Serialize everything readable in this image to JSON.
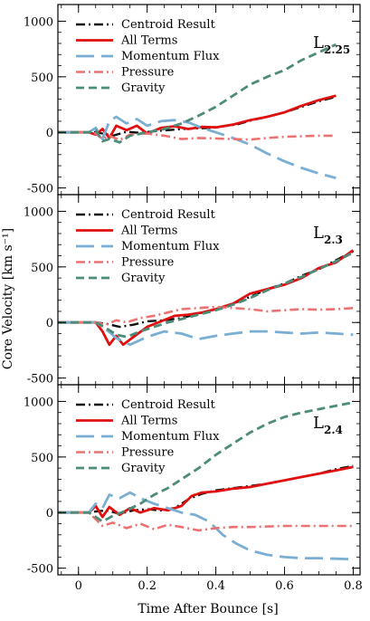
{
  "figure": {
    "ylabel": "Core Velocity [km s⁻¹]",
    "xlabel": "Time After Bounce [s]"
  },
  "colors": {
    "centroid": "#111111",
    "all_terms": "#e01010",
    "momentum_flux": "#7aaed2",
    "pressure": "#ec7272",
    "gravity": "#4d8c78"
  },
  "chart_data": [
    {
      "type": "line",
      "label": "L2.25",
      "label_main": "L",
      "label_sub": "2.25",
      "xlim": [
        -0.06,
        0.82
      ],
      "ylim": [
        -560,
        1150
      ],
      "xticks": [
        0,
        0.2,
        0.4,
        0.6,
        0.8
      ],
      "yticks": [
        -500,
        0,
        500,
        1000
      ],
      "grid": false,
      "legend": "top-left",
      "series": [
        {
          "name": "Centroid Result",
          "key": "centroid",
          "style": "dashdot",
          "x": [
            -0.06,
            0.03,
            0.05,
            0.07,
            0.1,
            0.14,
            0.18,
            0.22,
            0.26,
            0.3,
            0.34,
            0.38,
            0.42,
            0.46,
            0.5,
            0.55,
            0.6,
            0.65,
            0.7,
            0.75
          ],
          "y": [
            0,
            0,
            2,
            -10,
            -30,
            5,
            -5,
            10,
            20,
            30,
            35,
            40,
            55,
            70,
            105,
            140,
            180,
            230,
            280,
            320
          ]
        },
        {
          "name": "All Terms",
          "key": "all_terms",
          "style": "solid",
          "x": [
            -0.06,
            0.03,
            0.05,
            0.07,
            0.09,
            0.11,
            0.14,
            0.17,
            0.2,
            0.24,
            0.28,
            0.32,
            0.36,
            0.4,
            0.45,
            0.5,
            0.55,
            0.6,
            0.65,
            0.7,
            0.75
          ],
          "y": [
            0,
            0,
            -20,
            30,
            -50,
            60,
            20,
            60,
            -10,
            40,
            55,
            30,
            50,
            45,
            70,
            110,
            140,
            180,
            240,
            290,
            330
          ]
        },
        {
          "name": "Momentum Flux",
          "key": "momentum_flux",
          "style": "longdash",
          "x": [
            -0.06,
            0.03,
            0.05,
            0.07,
            0.09,
            0.11,
            0.14,
            0.17,
            0.2,
            0.24,
            0.28,
            0.32,
            0.36,
            0.4,
            0.45,
            0.5,
            0.55,
            0.6,
            0.65,
            0.7,
            0.75
          ],
          "y": [
            0,
            0,
            40,
            -60,
            100,
            140,
            80,
            120,
            60,
            100,
            110,
            90,
            40,
            0,
            -50,
            -110,
            -190,
            -260,
            -320,
            -370,
            -410
          ]
        },
        {
          "name": "Pressure",
          "key": "pressure",
          "style": "dashdot",
          "x": [
            -0.06,
            0.03,
            0.05,
            0.07,
            0.09,
            0.12,
            0.15,
            0.2,
            0.25,
            0.3,
            0.35,
            0.4,
            0.45,
            0.5,
            0.55,
            0.6,
            0.65,
            0.7,
            0.75
          ],
          "y": [
            0,
            0,
            -10,
            -60,
            -30,
            -70,
            -20,
            -10,
            -30,
            -60,
            -50,
            -55,
            -60,
            -65,
            -50,
            -40,
            -35,
            -30,
            -30
          ]
        },
        {
          "name": "Gravity",
          "key": "gravity",
          "style": "dashed",
          "x": [
            -0.06,
            0.03,
            0.05,
            0.07,
            0.09,
            0.12,
            0.15,
            0.2,
            0.25,
            0.3,
            0.35,
            0.4,
            0.45,
            0.5,
            0.55,
            0.6,
            0.65,
            0.7,
            0.75
          ],
          "y": [
            0,
            0,
            20,
            -80,
            -60,
            -90,
            -30,
            0,
            30,
            80,
            150,
            230,
            330,
            430,
            500,
            560,
            650,
            720,
            790
          ]
        }
      ]
    },
    {
      "type": "line",
      "label": "L2.3",
      "label_main": "L",
      "label_sub": "2.3",
      "xlim": [
        -0.06,
        0.82
      ],
      "ylim": [
        -560,
        1150
      ],
      "xticks": [
        0,
        0.2,
        0.4,
        0.6,
        0.8
      ],
      "yticks": [
        -500,
        0,
        500,
        1000
      ],
      "grid": false,
      "legend": "top-left",
      "series": [
        {
          "name": "Centroid Result",
          "key": "centroid",
          "style": "dashdot",
          "x": [
            -0.06,
            0.05,
            0.08,
            0.12,
            0.16,
            0.2,
            0.25,
            0.3,
            0.35,
            0.4,
            0.45,
            0.5,
            0.55,
            0.6,
            0.65,
            0.7,
            0.75,
            0.8
          ],
          "y": [
            0,
            0,
            -10,
            -40,
            -20,
            10,
            20,
            40,
            80,
            120,
            170,
            230,
            300,
            350,
            420,
            480,
            560,
            640
          ]
        },
        {
          "name": "All Terms",
          "key": "all_terms",
          "style": "solid",
          "x": [
            -0.06,
            0.05,
            0.07,
            0.09,
            0.11,
            0.13,
            0.16,
            0.2,
            0.24,
            0.28,
            0.32,
            0.36,
            0.4,
            0.45,
            0.5,
            0.55,
            0.6,
            0.65,
            0.7,
            0.75,
            0.8
          ],
          "y": [
            0,
            0,
            -80,
            -200,
            -120,
            -200,
            -130,
            -40,
            10,
            60,
            70,
            90,
            120,
            170,
            260,
            300,
            340,
            400,
            490,
            540,
            650
          ]
        },
        {
          "name": "Momentum Flux",
          "key": "momentum_flux",
          "style": "longdash",
          "x": [
            -0.06,
            0.05,
            0.08,
            0.11,
            0.15,
            0.2,
            0.25,
            0.3,
            0.35,
            0.4,
            0.45,
            0.5,
            0.55,
            0.6,
            0.65,
            0.7,
            0.75,
            0.8
          ],
          "y": [
            0,
            0,
            -60,
            -140,
            -200,
            -130,
            -80,
            -100,
            -150,
            -120,
            -100,
            -80,
            -80,
            -90,
            -100,
            -90,
            -100,
            -110
          ]
        },
        {
          "name": "Pressure",
          "key": "pressure",
          "style": "dashdot",
          "x": [
            -0.06,
            0.05,
            0.08,
            0.11,
            0.14,
            0.18,
            0.22,
            0.26,
            0.3,
            0.35,
            0.4,
            0.45,
            0.5,
            0.55,
            0.6,
            0.65,
            0.7,
            0.75,
            0.8
          ],
          "y": [
            0,
            0,
            -20,
            20,
            0,
            40,
            60,
            90,
            120,
            130,
            140,
            130,
            120,
            100,
            110,
            120,
            115,
            120,
            130
          ]
        },
        {
          "name": "Gravity",
          "key": "gravity",
          "style": "dashed",
          "x": [
            -0.06,
            0.05,
            0.08,
            0.11,
            0.14,
            0.18,
            0.22,
            0.26,
            0.3,
            0.35,
            0.4,
            0.45,
            0.5,
            0.55,
            0.6,
            0.65,
            0.7,
            0.75,
            0.8
          ],
          "y": [
            0,
            0,
            -50,
            -110,
            -130,
            -80,
            -40,
            0,
            30,
            70,
            110,
            160,
            220,
            290,
            350,
            410,
            480,
            550,
            630
          ]
        }
      ]
    },
    {
      "type": "line",
      "label": "L2.4",
      "label_main": "L",
      "label_sub": "2.4",
      "xlim": [
        -0.06,
        0.82
      ],
      "ylim": [
        -560,
        1150
      ],
      "xticks": [
        0,
        0.2,
        0.4,
        0.6,
        0.8
      ],
      "yticks": [
        -500,
        0,
        500,
        1000
      ],
      "grid": false,
      "legend": "top-left",
      "series": [
        {
          "name": "Centroid Result",
          "key": "centroid",
          "style": "dashdot",
          "x": [
            -0.06,
            0.03,
            0.05,
            0.08,
            0.12,
            0.16,
            0.2,
            0.24,
            0.28,
            0.32,
            0.36,
            0.4,
            0.45,
            0.5,
            0.55,
            0.6,
            0.65,
            0.7,
            0.75,
            0.8
          ],
          "y": [
            0,
            0,
            10,
            20,
            -10,
            20,
            30,
            20,
            40,
            120,
            170,
            200,
            220,
            240,
            260,
            290,
            320,
            350,
            390,
            420
          ]
        },
        {
          "name": "All Terms",
          "key": "all_terms",
          "style": "solid",
          "x": [
            -0.06,
            0.03,
            0.05,
            0.07,
            0.09,
            0.12,
            0.15,
            0.18,
            0.22,
            0.26,
            0.3,
            0.33,
            0.36,
            0.4,
            0.45,
            0.5,
            0.55,
            0.6,
            0.65,
            0.7,
            0.75,
            0.8
          ],
          "y": [
            0,
            0,
            60,
            -40,
            50,
            -20,
            40,
            0,
            40,
            20,
            60,
            150,
            180,
            190,
            215,
            230,
            260,
            290,
            320,
            350,
            380,
            410
          ]
        },
        {
          "name": "Momentum Flux",
          "key": "momentum_flux",
          "style": "longdash",
          "x": [
            -0.06,
            0.03,
            0.05,
            0.07,
            0.09,
            0.12,
            0.15,
            0.18,
            0.22,
            0.26,
            0.3,
            0.34,
            0.38,
            0.42,
            0.46,
            0.5,
            0.55,
            0.6,
            0.65,
            0.7,
            0.75,
            0.8
          ],
          "y": [
            0,
            0,
            80,
            40,
            160,
            130,
            180,
            130,
            80,
            40,
            0,
            -20,
            -80,
            -200,
            -280,
            -340,
            -380,
            -400,
            -410,
            -410,
            -415,
            -420
          ]
        },
        {
          "name": "Pressure",
          "key": "pressure",
          "style": "dashdot",
          "x": [
            -0.06,
            0.03,
            0.05,
            0.07,
            0.1,
            0.14,
            0.18,
            0.22,
            0.26,
            0.3,
            0.35,
            0.4,
            0.45,
            0.5,
            0.55,
            0.6,
            0.65,
            0.7,
            0.75,
            0.8
          ],
          "y": [
            0,
            0,
            -60,
            -120,
            -90,
            -140,
            -100,
            -150,
            -110,
            -130,
            -160,
            -140,
            -130,
            -130,
            -125,
            -120,
            -120,
            -120,
            -120,
            -120
          ]
        },
        {
          "name": "Gravity",
          "key": "gravity",
          "style": "dashed",
          "x": [
            -0.06,
            0.03,
            0.05,
            0.07,
            0.1,
            0.14,
            0.18,
            0.22,
            0.26,
            0.3,
            0.35,
            0.4,
            0.45,
            0.5,
            0.55,
            0.6,
            0.65,
            0.7,
            0.75,
            0.8
          ],
          "y": [
            0,
            0,
            -40,
            -80,
            -30,
            20,
            80,
            160,
            220,
            300,
            400,
            520,
            620,
            720,
            800,
            860,
            900,
            930,
            960,
            990
          ]
        }
      ]
    }
  ]
}
